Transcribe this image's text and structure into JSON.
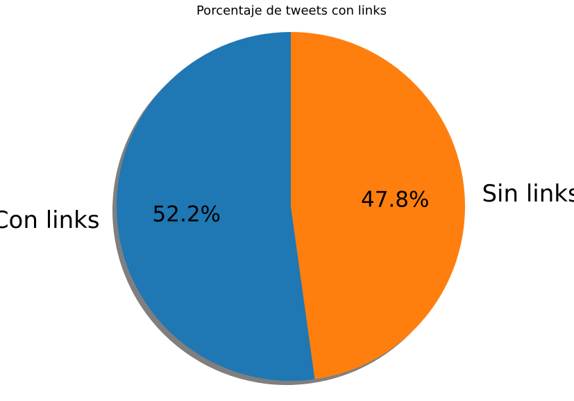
{
  "chart_data": {
    "type": "pie",
    "title": "Porcentaje de tweets con links",
    "labels": [
      "Con links",
      "Sin links"
    ],
    "values": [
      52.2,
      47.8
    ],
    "value_labels": [
      "52.2%",
      "47.8%"
    ],
    "colors": [
      "#1f77b4",
      "#ff7f0e"
    ],
    "start_angle_deg": 90,
    "direction": "counterclockwise",
    "shadow": true,
    "legend": "none"
  }
}
